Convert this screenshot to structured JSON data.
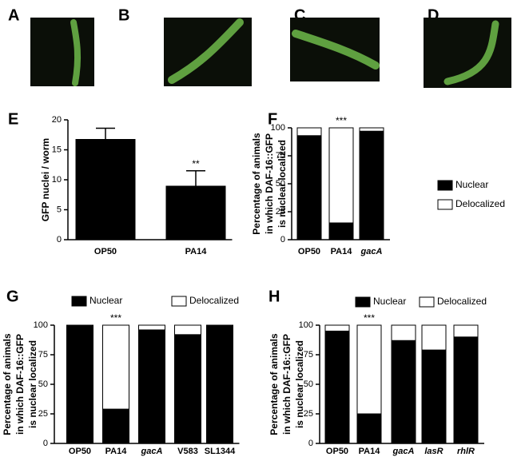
{
  "image_panels": [
    "A",
    "B",
    "C",
    "D"
  ],
  "chart_data": [
    {
      "type": "bar",
      "panel_label": "E",
      "ylabel": "GFP nuclei / worm",
      "categories": [
        "OP50",
        "PA14"
      ],
      "values": [
        16.8,
        9.0
      ],
      "errors": [
        1.8,
        2.5
      ],
      "color": "#000000",
      "annotations": [
        null,
        "**"
      ],
      "ylim": [
        0,
        20
      ],
      "yticks": [
        0,
        5,
        10,
        15,
        20
      ]
    },
    {
      "type": "stacked_bar",
      "panel_label": "F",
      "ylabel": [
        "Percentage of animals",
        "in which DAF-16::GFP",
        "is nuclear localized"
      ],
      "categories": [
        "OP50",
        "PA14",
        "gacA"
      ],
      "category_style": [
        "normal",
        "normal",
        "italic"
      ],
      "series": [
        {
          "name": "Nuclear",
          "color": "#000000",
          "values": [
            93,
            15,
            97
          ]
        },
        {
          "name": "Delocalized",
          "color": "#ffffff",
          "values": [
            7,
            85,
            3
          ]
        }
      ],
      "annotations": [
        null,
        "***",
        null
      ],
      "legend": "right",
      "ylim": [
        0,
        100
      ],
      "yticks": [
        0,
        25,
        50,
        75,
        100
      ]
    },
    {
      "type": "stacked_bar",
      "panel_label": "G",
      "ylabel": [
        "Percentage of animals",
        "in which DAF-16::GFP",
        "is nuclear localized"
      ],
      "categories": [
        "OP50",
        "PA14",
        "gacA",
        "V583",
        "SL1344"
      ],
      "category_style": [
        "normal",
        "normal",
        "italic",
        "normal",
        "normal"
      ],
      "series": [
        {
          "name": "Nuclear",
          "color": "#000000",
          "values": [
            100,
            29,
            96,
            92,
            100
          ]
        },
        {
          "name": "Delocalized",
          "color": "#ffffff",
          "values": [
            0,
            71,
            4,
            8,
            0
          ]
        }
      ],
      "annotations": [
        null,
        "***",
        null,
        null,
        null
      ],
      "legend": "top",
      "ylim": [
        0,
        100
      ],
      "yticks": [
        0,
        25,
        50,
        75,
        100
      ]
    },
    {
      "type": "stacked_bar",
      "panel_label": "H",
      "ylabel": [
        "Percentage of animals",
        "in which DAF-16::GFP",
        "is nuclear localized"
      ],
      "categories": [
        "OP50",
        "PA14",
        "gacA",
        "lasR",
        "rhlR"
      ],
      "category_style": [
        "normal",
        "normal",
        "italic",
        "italic",
        "italic"
      ],
      "series": [
        {
          "name": "Nuclear",
          "color": "#000000",
          "values": [
            95,
            25,
            87,
            79,
            90
          ]
        },
        {
          "name": "Delocalized",
          "color": "#ffffff",
          "values": [
            5,
            75,
            13,
            21,
            10
          ]
        }
      ],
      "annotations": [
        null,
        "***",
        null,
        null,
        null
      ],
      "legend": "top",
      "ylim": [
        0,
        100
      ],
      "yticks": [
        0,
        25,
        50,
        75,
        100
      ]
    }
  ]
}
